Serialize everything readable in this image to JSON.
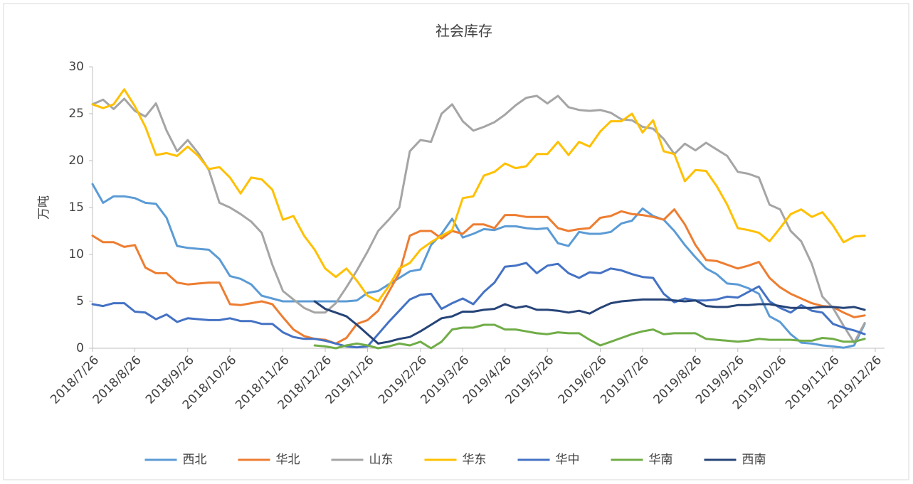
{
  "chart_data": {
    "type": "line",
    "title": "社会库存",
    "y_label": "万吨",
    "categories": [
      "2018/7/26",
      null,
      null,
      null,
      "2018/8/26",
      null,
      null,
      null,
      null,
      "2018/9/26",
      null,
      null,
      null,
      "2018/10/26",
      null,
      null,
      null,
      null,
      "2018/11/26",
      null,
      null,
      null,
      "2018/12/26",
      null,
      null,
      null,
      "2019/1/26",
      null,
      null,
      null,
      null,
      "2019/2/26",
      null,
      null,
      null,
      "2019/3/26",
      null,
      null,
      null,
      "2019/4/26",
      null,
      null,
      null,
      "2019/5/26",
      null,
      null,
      null,
      null,
      "2019/6/26",
      null,
      null,
      null,
      "2019/7/26",
      null,
      null,
      null,
      null,
      "2019/8/26",
      null,
      null,
      null,
      "2019/9/26",
      null,
      null,
      null,
      "2019/10/26",
      null,
      null,
      null,
      null,
      "2019/11/26",
      null,
      null,
      null,
      "2019/12/26"
    ],
    "ylim": [
      0,
      30
    ],
    "yticks": [
      0,
      5,
      10,
      15,
      20,
      25,
      30
    ],
    "grid": false,
    "legend": "bottom",
    "series": [
      {
        "name": "西北",
        "color": "#5B9BD5",
        "values": [
          17.5,
          15.5,
          16.2,
          16.2,
          16.0,
          15.5,
          15.4,
          13.9,
          10.9,
          10.7,
          10.6,
          10.5,
          9.5,
          7.7,
          7.4,
          6.8,
          5.6,
          5.3,
          5.0,
          5.0,
          5.0,
          5.0,
          5.0,
          5.0,
          5.0,
          5.1,
          5.9,
          6.1,
          6.8,
          7.5,
          8.2,
          8.4,
          11.0,
          12.2,
          13.8,
          11.8,
          12.2,
          12.7,
          12.6,
          13.0,
          13.0,
          12.8,
          12.7,
          12.8,
          11.2,
          10.9,
          12.4,
          12.2,
          12.2,
          12.4,
          13.3,
          13.6,
          14.9,
          14.1,
          13.7,
          12.5,
          11.0,
          9.7,
          8.5,
          7.9,
          6.9,
          6.8,
          6.4,
          5.8,
          3.4,
          2.8,
          1.5,
          0.6,
          0.5,
          0.3,
          0.2,
          0.05,
          0.3,
          2.6,
          null
        ]
      },
      {
        "name": "华北",
        "color": "#ED7D31",
        "values": [
          12.0,
          11.3,
          11.3,
          10.8,
          11.0,
          8.6,
          8.0,
          8.0,
          7.0,
          6.8,
          6.9,
          7.0,
          7.0,
          4.7,
          4.6,
          4.8,
          5.0,
          4.7,
          3.3,
          2.0,
          1.3,
          1.0,
          0.9,
          0.5,
          1.1,
          2.6,
          3.0,
          4.0,
          6.0,
          8.0,
          12.0,
          12.5,
          12.5,
          11.7,
          12.5,
          12.2,
          13.2,
          13.2,
          12.8,
          14.2,
          14.2,
          14.0,
          14.0,
          14.0,
          12.8,
          12.5,
          12.7,
          12.8,
          13.9,
          14.1,
          14.6,
          14.3,
          14.2,
          14.0,
          13.7,
          14.8,
          13.2,
          11.0,
          9.4,
          9.3,
          8.9,
          8.5,
          8.8,
          9.2,
          7.5,
          6.5,
          5.8,
          5.3,
          4.8,
          4.5,
          4.4,
          3.8,
          3.3,
          3.5,
          null
        ]
      },
      {
        "name": "山东",
        "color": "#A5A5A5",
        "values": [
          26.0,
          26.5,
          25.5,
          26.6,
          25.3,
          24.7,
          26.1,
          23.2,
          21.0,
          22.2,
          20.8,
          19.0,
          15.5,
          15.0,
          14.3,
          13.5,
          12.3,
          8.9,
          6.1,
          5.2,
          4.3,
          3.8,
          3.8,
          4.8,
          6.5,
          8.3,
          10.3,
          12.5,
          13.7,
          15.0,
          21.0,
          22.2,
          22.0,
          25.0,
          26.0,
          24.2,
          23.2,
          23.6,
          24.1,
          24.9,
          25.9,
          26.7,
          26.9,
          26.1,
          26.9,
          25.7,
          25.4,
          25.3,
          25.4,
          25.1,
          24.4,
          24.3,
          23.6,
          23.4,
          22.3,
          20.7,
          21.8,
          21.1,
          21.9,
          21.2,
          20.5,
          18.8,
          18.6,
          18.2,
          15.3,
          14.8,
          12.5,
          11.4,
          9.0,
          5.5,
          4.3,
          2.4,
          0.6,
          2.7,
          null
        ]
      },
      {
        "name": "华东",
        "color": "#FFC000",
        "values": [
          26.0,
          25.6,
          26.0,
          27.6,
          25.8,
          23.6,
          20.6,
          20.8,
          20.5,
          21.5,
          20.5,
          19.1,
          19.3,
          18.2,
          16.5,
          18.2,
          18.0,
          16.9,
          13.7,
          14.1,
          12.0,
          10.5,
          8.5,
          7.6,
          8.5,
          7.2,
          5.6,
          5.0,
          6.6,
          8.5,
          9.1,
          10.5,
          11.3,
          12.0,
          12.6,
          16.0,
          16.2,
          18.4,
          18.8,
          19.7,
          19.2,
          19.4,
          20.7,
          20.7,
          22.0,
          20.6,
          22.0,
          21.5,
          23.1,
          24.2,
          24.2,
          25.0,
          23.0,
          24.3,
          21.0,
          20.7,
          17.8,
          19.0,
          18.9,
          17.3,
          15.3,
          12.8,
          12.6,
          12.3,
          11.4,
          12.8,
          14.3,
          14.8,
          14.0,
          14.5,
          13.1,
          11.3,
          11.9,
          12.0,
          null
        ]
      },
      {
        "name": "华中",
        "color": "#4472C4",
        "values": [
          4.7,
          4.5,
          4.8,
          4.8,
          3.9,
          3.8,
          3.1,
          3.6,
          2.8,
          3.2,
          3.1,
          3.0,
          3.0,
          3.2,
          2.9,
          2.9,
          2.6,
          2.6,
          1.7,
          1.2,
          1.0,
          1.0,
          0.8,
          0.5,
          0.2,
          0.1,
          0.2,
          1.5,
          2.8,
          4.0,
          5.2,
          5.7,
          5.8,
          4.2,
          4.8,
          5.3,
          4.7,
          6.0,
          7.0,
          8.7,
          8.8,
          9.1,
          8.0,
          8.8,
          9.0,
          8.0,
          7.5,
          8.1,
          8.0,
          8.5,
          8.3,
          7.9,
          7.6,
          7.5,
          5.8,
          4.9,
          5.3,
          5.1,
          5.1,
          5.2,
          5.5,
          5.4,
          6.0,
          6.6,
          5.0,
          4.3,
          3.8,
          4.6,
          4.0,
          3.8,
          2.6,
          2.2,
          1.9,
          1.5,
          null
        ]
      },
      {
        "name": "华南",
        "color": "#70AD47",
        "values": [
          null,
          null,
          null,
          null,
          null,
          null,
          null,
          null,
          null,
          null,
          null,
          null,
          null,
          null,
          null,
          null,
          null,
          null,
          null,
          null,
          null,
          0.3,
          0.2,
          0.0,
          0.3,
          0.5,
          0.3,
          0.0,
          0.2,
          0.5,
          0.3,
          0.7,
          0.0,
          0.7,
          2.0,
          2.2,
          2.2,
          2.5,
          2.5,
          2.0,
          2.0,
          1.8,
          1.6,
          1.5,
          1.7,
          1.6,
          1.6,
          0.9,
          0.3,
          0.7,
          1.1,
          1.5,
          1.8,
          2.0,
          1.5,
          1.6,
          1.6,
          1.6,
          1.0,
          0.9,
          0.8,
          0.7,
          0.8,
          1.0,
          0.9,
          0.9,
          0.9,
          0.8,
          0.8,
          1.1,
          1.0,
          0.7,
          0.7,
          1.0,
          null
        ]
      },
      {
        "name": "西南",
        "color": "#264478",
        "values": [
          null,
          null,
          null,
          null,
          null,
          null,
          null,
          null,
          null,
          null,
          null,
          null,
          null,
          null,
          null,
          null,
          null,
          null,
          null,
          null,
          null,
          5.0,
          4.2,
          3.8,
          3.4,
          2.5,
          1.5,
          0.5,
          0.7,
          1.0,
          1.2,
          1.8,
          2.5,
          3.2,
          3.4,
          3.9,
          3.9,
          4.1,
          4.2,
          4.7,
          4.3,
          4.5,
          4.1,
          4.1,
          4.0,
          3.8,
          4.0,
          3.7,
          4.3,
          4.8,
          5.0,
          5.1,
          5.2,
          5.2,
          5.2,
          5.1,
          5.0,
          5.1,
          4.5,
          4.4,
          4.4,
          4.6,
          4.6,
          4.7,
          4.7,
          4.5,
          4.3,
          4.3,
          4.3,
          4.4,
          4.4,
          4.3,
          4.4,
          4.1,
          null
        ]
      }
    ]
  }
}
